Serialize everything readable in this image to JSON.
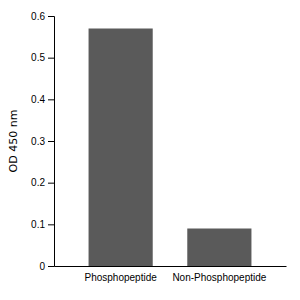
{
  "chart_data": {
    "type": "bar",
    "categories": [
      "Phosphopeptide",
      "Non-Phosphopeptide"
    ],
    "values": [
      0.57,
      0.09
    ],
    "color": "#5a5a5a",
    "ylabel": "OD 450 nm",
    "ylim": [
      0,
      0.6
    ],
    "yticks": [
      0,
      0.1,
      0.2,
      0.3,
      0.4,
      0.5,
      0.6
    ],
    "grid": false
  }
}
